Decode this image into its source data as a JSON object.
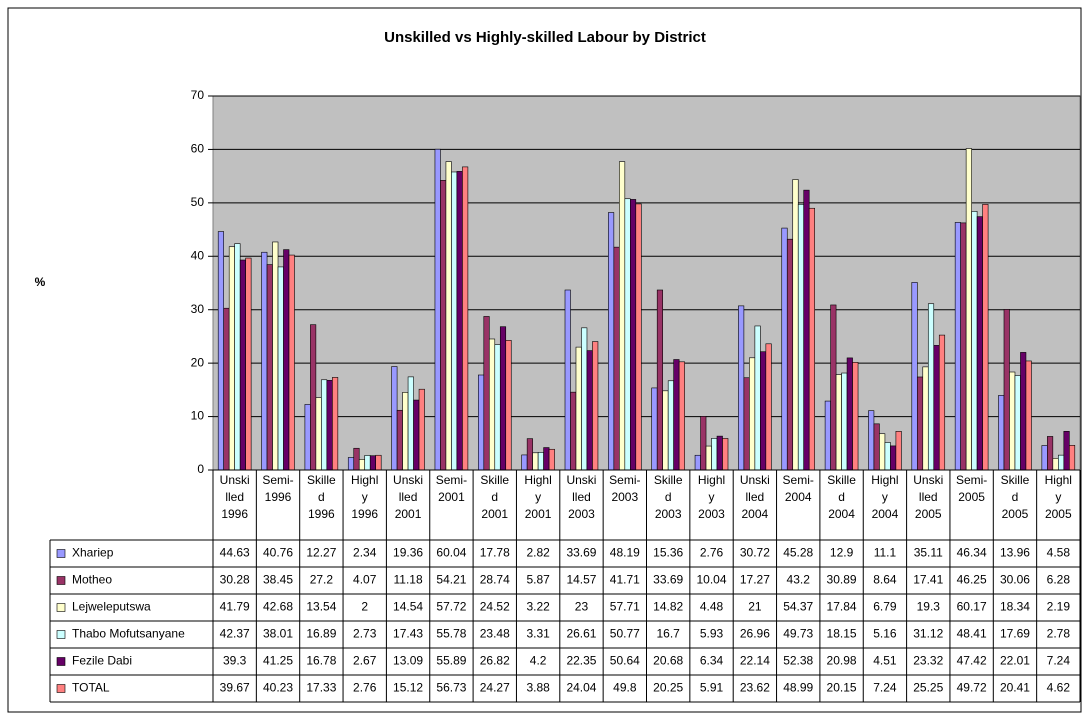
{
  "chart_data": {
    "type": "bar",
    "title": "Unskilled vs Highly-skilled Labour by District",
    "y_label": "%",
    "categories": [
      "Unskilled 1996",
      "Semi-1996",
      "Skilled 1996",
      "Highly 1996",
      "Unskilled 2001",
      "Semi-2001",
      "Skilled 2001",
      "Highly 2001",
      "Unskilled 2003",
      "Semi-2003",
      "Skilled 2003",
      "Highly 2003",
      "Unskilled 2004",
      "Semi-2004",
      "Skilled 2004",
      "Highly 2004",
      "Unskilled 2005",
      "Semi-2005",
      "Skilled 2005",
      "Highly 2005"
    ],
    "series": [
      {
        "name": "Xhariep",
        "color": "#9999ff",
        "values": [
          44.63,
          40.76,
          12.27,
          2.34,
          19.36,
          60.04,
          17.78,
          2.82,
          33.69,
          48.19,
          15.36,
          2.76,
          30.72,
          45.28,
          12.9,
          11.1,
          35.11,
          46.34,
          13.96,
          4.58
        ]
      },
      {
        "name": "Motheo",
        "color": "#993366",
        "values": [
          30.28,
          38.45,
          27.2,
          4.07,
          11.18,
          54.21,
          28.74,
          5.87,
          14.57,
          41.71,
          33.69,
          10.04,
          17.27,
          43.2,
          30.89,
          8.64,
          17.41,
          46.25,
          30.06,
          6.28
        ]
      },
      {
        "name": "Lejweleputswa",
        "color": "#ffffcc",
        "values": [
          41.79,
          42.68,
          13.54,
          2,
          14.54,
          57.72,
          24.52,
          3.22,
          23,
          57.71,
          14.82,
          4.48,
          21,
          54.37,
          17.84,
          6.79,
          19.3,
          60.17,
          18.34,
          2.19
        ]
      },
      {
        "name": "Thabo Mofutsanyane",
        "color": "#ccffff",
        "values": [
          42.37,
          38.01,
          16.89,
          2.73,
          17.43,
          55.78,
          23.48,
          3.31,
          26.61,
          50.77,
          16.7,
          5.93,
          26.96,
          49.73,
          18.15,
          5.16,
          31.12,
          48.41,
          17.69,
          2.78
        ]
      },
      {
        "name": "Fezile Dabi",
        "color": "#660066",
        "values": [
          39.3,
          41.25,
          16.78,
          2.67,
          13.09,
          55.89,
          26.82,
          4.2,
          22.35,
          50.64,
          20.68,
          6.34,
          22.14,
          52.38,
          20.98,
          4.51,
          23.32,
          47.42,
          22.01,
          7.24
        ]
      },
      {
        "name": "TOTAL",
        "color": "#ff8080",
        "values": [
          39.67,
          40.23,
          17.33,
          2.76,
          15.12,
          56.73,
          24.27,
          3.88,
          24.04,
          49.8,
          20.25,
          5.91,
          23.62,
          48.99,
          20.15,
          7.24,
          25.25,
          49.72,
          20.41,
          4.62
        ]
      }
    ],
    "ylim": [
      0,
      70
    ],
    "yticks": [
      0,
      10,
      20,
      30,
      40,
      50,
      60,
      70
    ],
    "grid": true,
    "plot_background": "#c0c0c0"
  }
}
